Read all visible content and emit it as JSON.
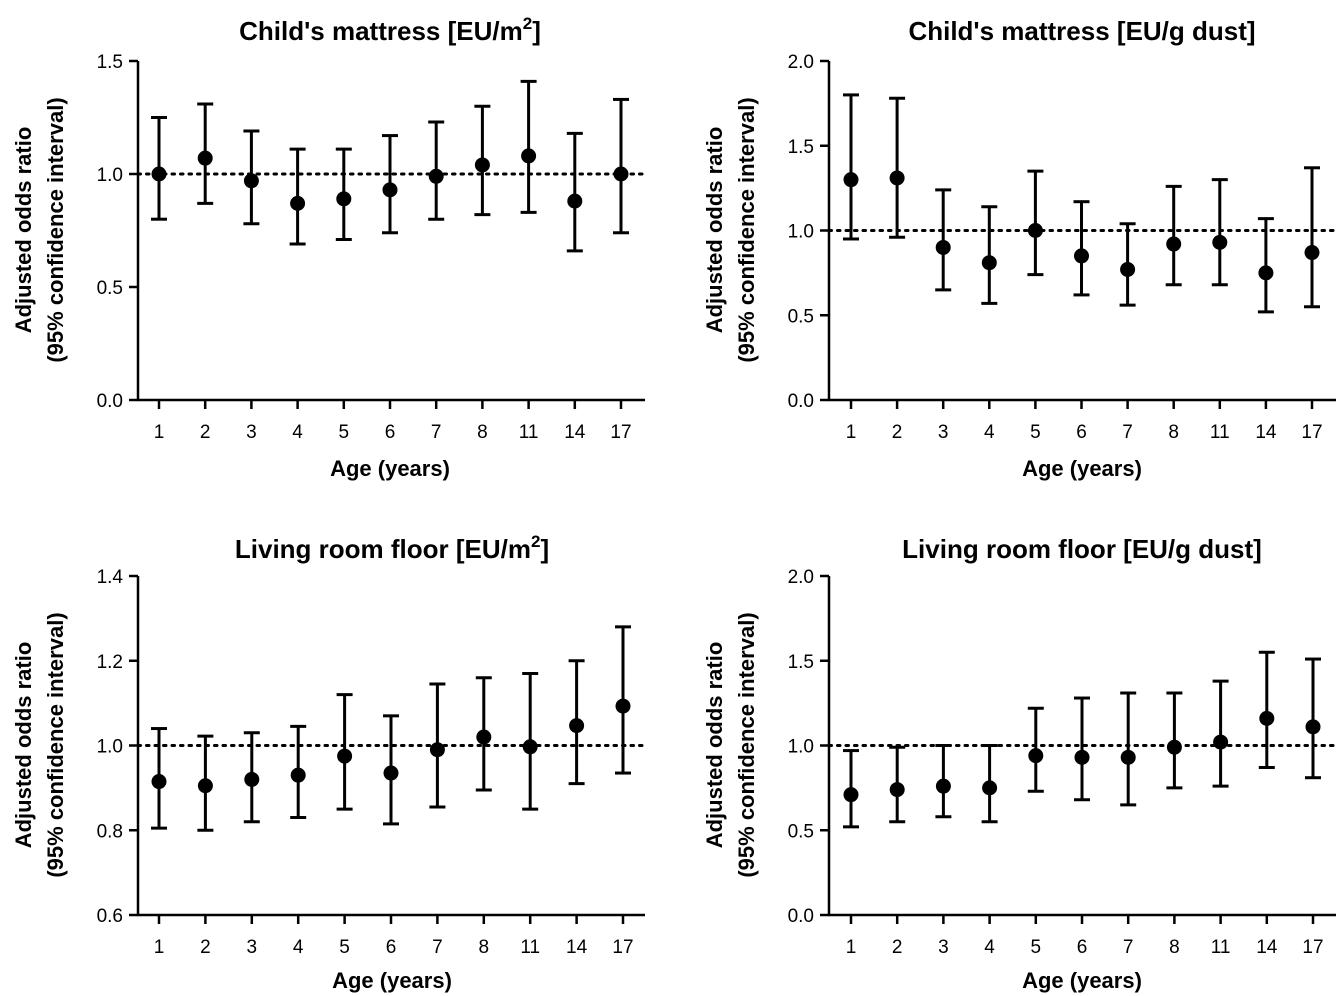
{
  "chart_data": [
    {
      "type": "scatter",
      "title_main": "Child's mattress [EU/m",
      "title_sup": "2",
      "title_end": "]",
      "xlabel": "Age (years)",
      "ylabel_line1": "Adjusted odds ratio",
      "ylabel_line2": "(95% confidence interval)",
      "categories": [
        "1",
        "2",
        "3",
        "4",
        "5",
        "6",
        "7",
        "8",
        "11",
        "14",
        "17"
      ],
      "values": [
        1.0,
        1.07,
        0.97,
        0.87,
        0.89,
        0.93,
        0.99,
        1.04,
        1.08,
        0.88,
        1.0
      ],
      "lower": [
        0.8,
        0.87,
        0.78,
        0.69,
        0.71,
        0.74,
        0.8,
        0.82,
        0.83,
        0.66,
        0.74
      ],
      "upper": [
        1.25,
        1.31,
        1.19,
        1.11,
        1.11,
        1.17,
        1.23,
        1.3,
        1.41,
        1.18,
        1.33
      ],
      "ylim": [
        0.0,
        1.5
      ],
      "yticks": [
        "0.0",
        "0.5",
        "1.0",
        "1.5"
      ],
      "reference_line": 1.0
    },
    {
      "type": "scatter",
      "title_main": "Child's mattress [EU/g dust]",
      "title_sup": "",
      "title_end": "",
      "xlabel": "Age (years)",
      "ylabel_line1": "Adjusted odds ratio",
      "ylabel_line2": "(95% confidence interval)",
      "categories": [
        "1",
        "2",
        "3",
        "4",
        "5",
        "6",
        "7",
        "8",
        "11",
        "14",
        "17"
      ],
      "values": [
        1.3,
        1.31,
        0.9,
        0.81,
        1.0,
        0.85,
        0.77,
        0.92,
        0.93,
        0.75,
        0.87
      ],
      "lower": [
        0.95,
        0.96,
        0.65,
        0.57,
        0.74,
        0.62,
        0.56,
        0.68,
        0.68,
        0.52,
        0.55
      ],
      "upper": [
        1.8,
        1.78,
        1.24,
        1.14,
        1.35,
        1.17,
        1.04,
        1.26,
        1.3,
        1.07,
        1.37
      ],
      "ylim": [
        0.0,
        2.0
      ],
      "yticks": [
        "0.0",
        "0.5",
        "1.0",
        "1.5",
        "2.0"
      ],
      "reference_line": 1.0
    },
    {
      "type": "scatter",
      "title_main": "Living room floor [EU/m",
      "title_sup": "2",
      "title_end": "]",
      "xlabel": "Age (years)",
      "ylabel_line1": "Adjusted odds ratio",
      "ylabel_line2": "(95% confidence interval)",
      "categories": [
        "1",
        "2",
        "3",
        "4",
        "5",
        "6",
        "7",
        "8",
        "11",
        "14",
        "17"
      ],
      "values": [
        0.915,
        0.905,
        0.92,
        0.93,
        0.975,
        0.935,
        0.99,
        1.02,
        0.997,
        1.047,
        1.093
      ],
      "lower": [
        0.805,
        0.8,
        0.82,
        0.83,
        0.85,
        0.815,
        0.855,
        0.895,
        0.85,
        0.91,
        0.935
      ],
      "upper": [
        1.04,
        1.022,
        1.03,
        1.045,
        1.12,
        1.07,
        1.145,
        1.16,
        1.17,
        1.2,
        1.28
      ],
      "ylim": [
        0.6,
        1.4
      ],
      "yticks": [
        "0.6",
        "0.8",
        "1.0",
        "1.2",
        "1.4"
      ],
      "reference_line": 1.0
    },
    {
      "type": "scatter",
      "title_main": "Living room floor [EU/g dust]",
      "title_sup": "",
      "title_end": "",
      "xlabel": "Age (years)",
      "ylabel_line1": "Adjusted odds ratio",
      "ylabel_line2": "(95% confidence interval)",
      "categories": [
        "1",
        "2",
        "3",
        "4",
        "5",
        "6",
        "7",
        "8",
        "11",
        "14",
        "17"
      ],
      "values": [
        0.71,
        0.74,
        0.76,
        0.75,
        0.94,
        0.93,
        0.93,
        0.99,
        1.02,
        1.16,
        1.11
      ],
      "lower": [
        0.52,
        0.55,
        0.58,
        0.55,
        0.73,
        0.68,
        0.65,
        0.75,
        0.76,
        0.87,
        0.81
      ],
      "upper": [
        0.97,
        0.99,
        1.0,
        1.0,
        1.22,
        1.28,
        1.31,
        1.31,
        1.38,
        1.55,
        1.51
      ],
      "ylim": [
        0.0,
        2.0
      ],
      "yticks": [
        "0.0",
        "0.5",
        "1.0",
        "1.5",
        "2.0"
      ],
      "reference_line": 1.0
    }
  ]
}
